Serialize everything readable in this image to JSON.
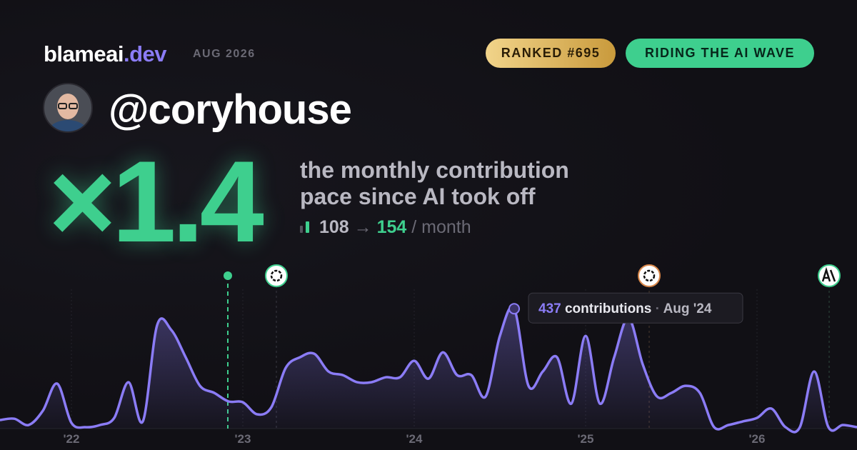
{
  "header": {
    "brand": "blameai",
    "brand_suffix": ".dev",
    "date": "AUG 2026",
    "badges": [
      "RANKED #695",
      "RIDING THE AI WAVE"
    ],
    "handle": "@coryhouse"
  },
  "headline": {
    "multiplier": "×1.4",
    "description": [
      "the monthly contribution",
      "pace since AI took off"
    ],
    "before": 108,
    "arrow": "→",
    "after": 154,
    "unit": "/ month"
  },
  "chart_data": {
    "type": "line",
    "x": [
      "2021-08",
      "2021-09",
      "2021-10",
      "2021-11",
      "2021-12",
      "2022-01",
      "2022-02",
      "2022-03",
      "2022-04",
      "2022-05",
      "2022-06",
      "2022-07",
      "2022-08",
      "2022-09",
      "2022-10",
      "2022-11",
      "2022-12",
      "2023-01",
      "2023-02",
      "2023-03",
      "2023-04",
      "2023-05",
      "2023-06",
      "2023-07",
      "2023-08",
      "2023-09",
      "2023-10",
      "2023-11",
      "2023-12",
      "2024-01",
      "2024-02",
      "2024-03",
      "2024-04",
      "2024-05",
      "2024-06",
      "2024-07",
      "2024-08",
      "2024-09",
      "2024-10",
      "2024-11",
      "2024-12",
      "2025-01",
      "2025-02",
      "2025-03",
      "2025-04",
      "2025-05",
      "2025-06",
      "2025-07",
      "2025-08",
      "2025-09",
      "2025-10",
      "2025-11",
      "2025-12",
      "2026-01",
      "2026-02",
      "2026-03",
      "2026-04",
      "2026-05",
      "2026-06",
      "2026-07",
      "2026-08"
    ],
    "series": [
      {
        "name": "contributions",
        "color": "#8b7cf6",
        "values": [
          31,
          36,
          13,
          65,
          164,
          21,
          5,
          13,
          39,
          169,
          26,
          377,
          359,
          260,
          156,
          130,
          99,
          96,
          52,
          78,
          221,
          260,
          273,
          208,
          195,
          169,
          169,
          187,
          187,
          247,
          182,
          278,
          195,
          195,
          117,
          338,
          437,
          156,
          208,
          260,
          91,
          338,
          91,
          260,
          403,
          234,
          117,
          130,
          156,
          130,
          5,
          13,
          26,
          39,
          73,
          5,
          5,
          208,
          5,
          13,
          5
        ]
      }
    ],
    "xlim": [
      "2021-08",
      "2026-08"
    ],
    "ylim": [
      0,
      500
    ],
    "xticks": [
      {
        "value": "2022-01",
        "label": "'22"
      },
      {
        "value": "2023-01",
        "label": "'23"
      },
      {
        "value": "2024-01",
        "label": "'24"
      },
      {
        "value": "2025-01",
        "label": "'25"
      },
      {
        "value": "2026-01",
        "label": "'26"
      }
    ],
    "grid": true,
    "tooltip": {
      "label": "contributions",
      "date": "Aug '24"
    }
  }
}
